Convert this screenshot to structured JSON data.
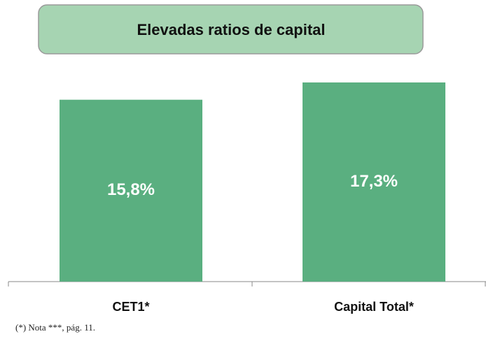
{
  "chart_data": {
    "type": "bar",
    "title": "Elevadas ratios de capital",
    "categories": [
      "CET1*",
      "Capital Total*"
    ],
    "values": [
      15.8,
      17.3
    ],
    "value_labels": [
      "15,8%",
      "17,3%"
    ],
    "color": "#5aaf80",
    "note": "(*) Nota ***, pág. 11."
  }
}
